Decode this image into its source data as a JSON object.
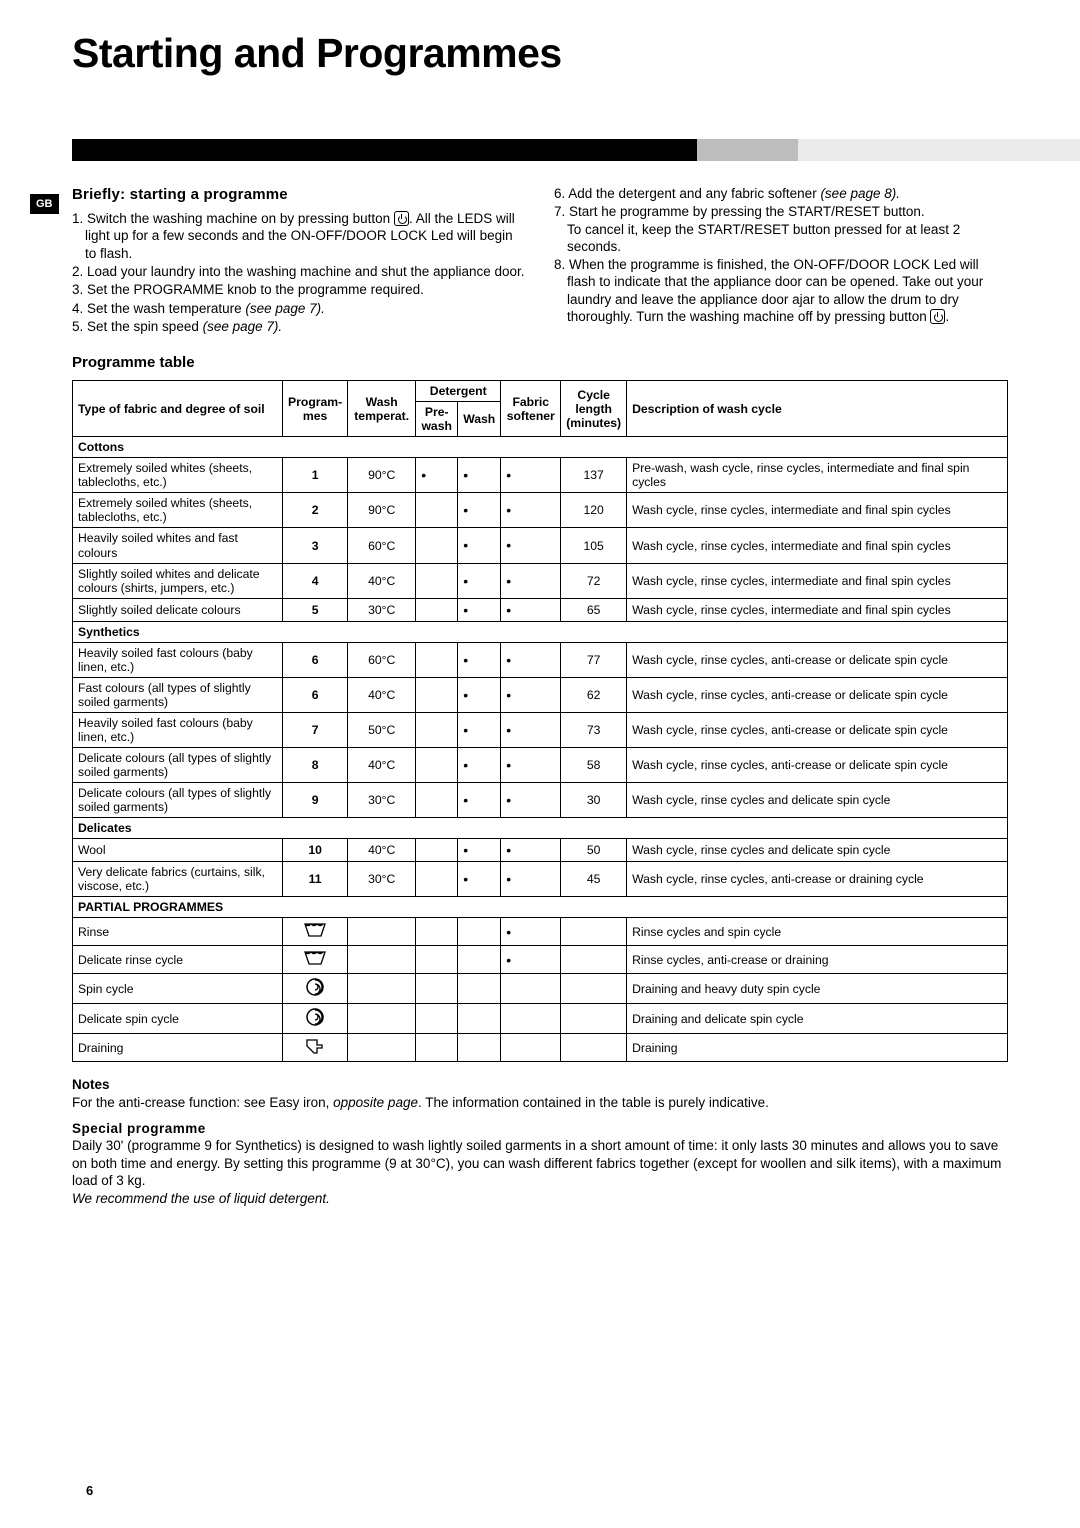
{
  "badge": "GB",
  "page_title": "Starting and Programmes",
  "page_number": "6",
  "left": {
    "heading": "Briefly: starting a programme",
    "items": [
      {
        "n": "1.",
        "t": "Switch the washing machine on by pressing button",
        "icon": true,
        "t2": "All the LEDS will light up for a few seconds and the ON-OFF/DOOR LOCK Led will begin to flash."
      },
      {
        "n": "2.",
        "t": "Load your laundry into the washing machine and shut the appliance door."
      },
      {
        "n": "3.",
        "t": "Set the PROGRAMME knob to the programme required."
      },
      {
        "n": "4.",
        "t": "Set the wash temperature ",
        "it": "(see page 7)."
      },
      {
        "n": "5.",
        "t": "Set the spin speed ",
        "it": "(see page 7)."
      }
    ]
  },
  "right": {
    "items": [
      {
        "n": "6.",
        "t": "Add the detergent and any fabric softener ",
        "it": "(see page 8)."
      },
      {
        "n": "7.",
        "t": "Start he programme by pressing the START/RESET button.",
        "t2": "To cancel it, keep the START/RESET button pressed for at least 2 seconds."
      },
      {
        "n": "8.",
        "t": "When the programme is finished, the ON-OFF/DOOR LOCK Led will flash to indicate that the appliance door can be opened. Take out your laundry and leave the appliance door ajar to allow the drum to dry thoroughly. Turn the washing machine off by pressing button ",
        "icon": true
      }
    ]
  },
  "table_heading": "Programme table",
  "headers": {
    "type": "Type of fabric and degree of soil",
    "prog": "Program-\nmes",
    "temp": "Wash\ntemperat.",
    "det": "Detergent",
    "pre": "Pre-\nwash",
    "wash": "Wash",
    "soft": "Fabric\nsoftener",
    "len": "Cycle\nlength\n(minutes)",
    "desc": "Description of wash cycle"
  },
  "sections": [
    {
      "title": "Cottons",
      "rows": [
        {
          "type": "Extremely soiled whites (sheets, tablecloths, etc.)",
          "p": "1",
          "t": "90°C",
          "pre": "•",
          "w": "•",
          "s": "•",
          "l": "137",
          "d": "Pre-wash, wash cycle, rinse cycles, intermediate and final spin cycles"
        },
        {
          "type": "Extremely soiled whites (sheets, tablecloths, etc.)",
          "p": "2",
          "t": "90°C",
          "pre": "",
          "w": "•",
          "s": "•",
          "l": "120",
          "d": "Wash cycle, rinse cycles, intermediate and final spin cycles"
        },
        {
          "type": "Heavily soiled whites and fast colours",
          "p": "3",
          "t": "60°C",
          "pre": "",
          "w": "•",
          "s": "•",
          "l": "105",
          "d": "Wash cycle, rinse cycles, intermediate and final spin cycles"
        },
        {
          "type": "Slightly soiled whites and delicate colours (shirts, jumpers, etc.)",
          "p": "4",
          "t": "40°C",
          "pre": "",
          "w": "•",
          "s": "•",
          "l": "72",
          "d": "Wash cycle, rinse cycles, intermediate and final spin cycles"
        },
        {
          "type": "Slightly soiled delicate colours",
          "p": "5",
          "t": "30°C",
          "pre": "",
          "w": "•",
          "s": "•",
          "l": "65",
          "d": "Wash cycle, rinse cycles, intermediate and final spin cycles"
        }
      ]
    },
    {
      "title": "Synthetics",
      "rows": [
        {
          "type": "Heavily soiled fast colours (baby linen, etc.)",
          "p": "6",
          "t": "60°C",
          "pre": "",
          "w": "•",
          "s": "•",
          "l": "77",
          "d": "Wash cycle, rinse cycles, anti-crease or delicate spin cycle"
        },
        {
          "type": "Fast colours (all types of slightly soiled garments)",
          "p": "6",
          "t": "40°C",
          "pre": "",
          "w": "•",
          "s": "•",
          "l": "62",
          "d": "Wash cycle, rinse cycles, anti-crease or delicate spin cycle"
        },
        {
          "type": "Heavily soiled fast colours (baby linen, etc.)",
          "p": "7",
          "t": "50°C",
          "pre": "",
          "w": "•",
          "s": "•",
          "l": "73",
          "d": "Wash cycle, rinse cycles, anti-crease or delicate spin cycle"
        },
        {
          "type": "Delicate colours (all types of slightly soiled garments)",
          "p": "8",
          "t": "40°C",
          "pre": "",
          "w": "•",
          "s": "•",
          "l": "58",
          "d": "Wash cycle, rinse cycles, anti-crease or delicate spin cycle"
        },
        {
          "type": "Delicate colours (all types of slightly soiled garments)",
          "p": "9",
          "t": "30°C",
          "pre": "",
          "w": "•",
          "s": "•",
          "l": "30",
          "d": "Wash cycle, rinse cycles and delicate spin cycle"
        }
      ]
    },
    {
      "title": "Delicates",
      "rows": [
        {
          "type": "Wool",
          "p": "10",
          "t": "40°C",
          "pre": "",
          "w": "•",
          "s": "•",
          "l": "50",
          "d": "Wash cycle, rinse cycles and delicate spin cycle"
        },
        {
          "type": "Very delicate fabrics (curtains, silk, viscose, etc.)",
          "p": "11",
          "t": "30°C",
          "pre": "",
          "w": "•",
          "s": "•",
          "l": "45",
          "d": "Wash cycle, rinse cycles, anti-crease or draining cycle"
        }
      ]
    },
    {
      "title": "PARTIAL PROGRAMMES",
      "rows": [
        {
          "type": "Rinse",
          "p": "RINSE",
          "t": "",
          "pre": "",
          "w": "",
          "s": "•",
          "l": "",
          "d": "Rinse cycles and spin cycle"
        },
        {
          "type": "Delicate rinse cycle",
          "p": "RINSE",
          "t": "",
          "pre": "",
          "w": "",
          "s": "•",
          "l": "",
          "d": "Rinse cycles, anti-crease or draining"
        },
        {
          "type": "Spin cycle",
          "p": "SPIN",
          "t": "",
          "pre": "",
          "w": "",
          "s": "",
          "l": "",
          "d": "Draining and heavy duty spin cycle"
        },
        {
          "type": "Delicate spin cycle",
          "p": "SPIN",
          "t": "",
          "pre": "",
          "w": "",
          "s": "",
          "l": "",
          "d": "Draining and delicate spin cycle"
        },
        {
          "type": "Draining",
          "p": "DRAIN",
          "t": "",
          "pre": "",
          "w": "",
          "s": "",
          "l": "",
          "d": "Draining"
        }
      ]
    }
  ],
  "notes": {
    "heading": "Notes",
    "t1": "For the anti-crease function: see Easy iron, ",
    "it": "opposite page",
    "t2": ". The information contained in the table is purely indicative.",
    "sp_h": "Special programme",
    "sp": "Daily 30' (programme 9 for Synthetics) is designed to wash lightly soiled garments in a short amount of time: it only lasts 30 minutes and allows you to save on both time and energy. By setting this programme (9 at 30°C), you can wash different fabrics together (except for woollen and silk items), with a maximum load of 3 kg.",
    "sp_it": "We recommend the use of liquid detergent."
  },
  "icons": {
    "RINSE": "rinse",
    "SPIN": "spin",
    "DRAIN": "drain"
  }
}
